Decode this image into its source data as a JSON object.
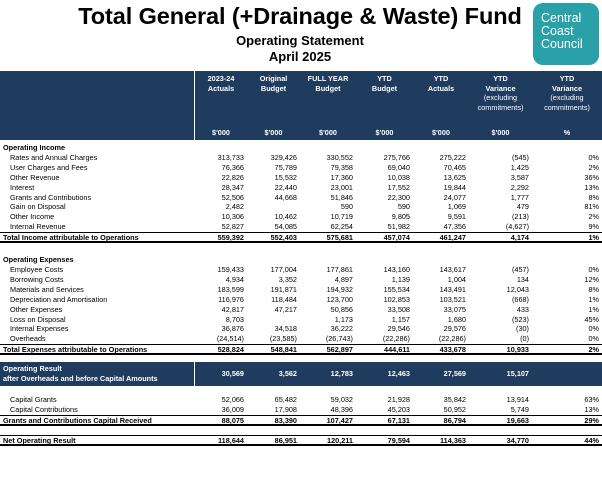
{
  "header": {
    "title": "Total General (+Drainage & Waste) Fund",
    "subtitle": "Operating Statement",
    "period": "April 2025",
    "logo_lines": [
      "Central",
      "Coast",
      "Council"
    ]
  },
  "columns": [
    {
      "lines": [
        "2023-24",
        "Actuals"
      ],
      "sub": [],
      "unit": "$'000"
    },
    {
      "lines": [
        "Original",
        "Budget"
      ],
      "sub": [],
      "unit": "$'000"
    },
    {
      "lines": [
        "FULL YEAR",
        "Budget"
      ],
      "sub": [],
      "unit": "$'000"
    },
    {
      "lines": [
        "YTD",
        "Budget"
      ],
      "sub": [],
      "unit": "$'000"
    },
    {
      "lines": [
        "YTD",
        "Actuals"
      ],
      "sub": [],
      "unit": "$'000"
    },
    {
      "lines": [
        "YTD",
        "Variance"
      ],
      "sub": [
        "(excluding",
        "commitments)"
      ],
      "unit": "$'000"
    },
    {
      "lines": [
        "YTD",
        "Variance"
      ],
      "sub": [
        "(excluding",
        "commitments)"
      ],
      "unit": "%"
    }
  ],
  "sections": {
    "income": {
      "title": "Operating Income",
      "rows": [
        {
          "label": "Rates and Annual Charges",
          "bold": false,
          "values": [
            "313,733",
            "329,426",
            "330,552",
            "275,766",
            "275,222",
            "(545)",
            "0%"
          ]
        },
        {
          "label": "User Charges and Fees",
          "bold": false,
          "values": [
            "76,366",
            "75,789",
            "79,358",
            "69,040",
            "70,465",
            "1,425",
            "2%"
          ]
        },
        {
          "label": "Other Revenue",
          "bold": false,
          "values": [
            "22,826",
            "15,532",
            "17,360",
            "10,038",
            "13,625",
            "3,587",
            "36%"
          ]
        },
        {
          "label": "Interest",
          "bold": false,
          "values": [
            "28,347",
            "22,440",
            "23,001",
            "17,552",
            "19,844",
            "2,292",
            "13%"
          ]
        },
        {
          "label": "Grants and Contributions",
          "bold": false,
          "values": [
            "52,506",
            "44,668",
            "51,846",
            "22,300",
            "24,077",
            "1,777",
            "8%"
          ]
        },
        {
          "label": "Gain on Disposal",
          "bold": false,
          "values": [
            "2,482",
            "",
            "590",
            "590",
            "1,069",
            "479",
            "81%"
          ]
        },
        {
          "label": "Other Income",
          "bold": false,
          "values": [
            "10,306",
            "10,462",
            "10,719",
            "9,805",
            "9,591",
            "(213)",
            "2%"
          ]
        },
        {
          "label": "Internal Revenue",
          "bold": false,
          "values": [
            "52,827",
            "54,085",
            "62,254",
            "51,982",
            "47,356",
            "(4,627)",
            "9%"
          ]
        }
      ],
      "total": {
        "label": "Total Income attributable to Operations",
        "values": [
          "559,392",
          "552,403",
          "575,681",
          "457,074",
          "461,247",
          "4,174",
          "1%"
        ]
      }
    },
    "expenses": {
      "title": "Operating Expenses",
      "rows": [
        {
          "label": "Employee Costs",
          "bold": false,
          "values": [
            "159,433",
            "177,004",
            "177,861",
            "143,160",
            "143,617",
            "(457)",
            "0%"
          ]
        },
        {
          "label": "Borrowing Costs",
          "bold": false,
          "values": [
            "4,934",
            "3,352",
            "4,897",
            "1,139",
            "1,004",
            "134",
            "12%"
          ]
        },
        {
          "label": "Materials and Services",
          "bold": false,
          "values": [
            "183,599",
            "191,871",
            "194,932",
            "155,534",
            "143,491",
            "12,043",
            "8%"
          ]
        },
        {
          "label": "Depreciation and Amortisation",
          "bold": false,
          "values": [
            "116,976",
            "118,484",
            "123,700",
            "102,853",
            "103,521",
            "(668)",
            "1%"
          ]
        },
        {
          "label": "Other Expenses",
          "bold": false,
          "values": [
            "42,817",
            "47,217",
            "50,856",
            "33,508",
            "33,075",
            "433",
            "1%"
          ]
        },
        {
          "label": "Loss on Disposal",
          "bold": false,
          "values": [
            "8,703",
            "",
            "1,173",
            "1,157",
            "1,680",
            "(523)",
            "45%"
          ]
        },
        {
          "label": "Internal Expenses",
          "bold": false,
          "values": [
            "36,876",
            "34,518",
            "36,222",
            "29,546",
            "29,576",
            "(30)",
            "0%"
          ]
        },
        {
          "label": "Overheads",
          "bold": false,
          "values": [
            "(24,514)",
            "(23,585)",
            "(26,743)",
            "(22,286)",
            "(22,286)",
            "(0)",
            "0%"
          ]
        }
      ],
      "total": {
        "label": "Total Expenses attributable to Operations",
        "values": [
          "528,824",
          "548,841",
          "562,897",
          "444,611",
          "433,678",
          "10,933",
          "2%"
        ]
      }
    },
    "result": {
      "lines": [
        "Operating Result",
        "after Overheads and before Capital Amounts"
      ],
      "values": [
        "30,569",
        "3,562",
        "12,783",
        "12,463",
        "27,569",
        "15,107",
        ""
      ]
    },
    "capital": {
      "rows": [
        {
          "label": "Capital Grants",
          "bold": false,
          "values": [
            "52,066",
            "65,482",
            "59,032",
            "21,928",
            "35,842",
            "13,914",
            "63%"
          ]
        },
        {
          "label": "Capital Contributions",
          "bold": false,
          "values": [
            "36,009",
            "17,908",
            "48,396",
            "45,203",
            "50,952",
            "5,749",
            "13%"
          ]
        }
      ],
      "total": {
        "label": "Grants and Contributions Capital Received",
        "values": [
          "88,075",
          "83,390",
          "107,427",
          "67,131",
          "86,794",
          "19,663",
          "29%"
        ]
      }
    },
    "net": {
      "label": "Net Operating Result",
      "values": [
        "118,644",
        "86,951",
        "120,211",
        "79,594",
        "114,363",
        "34,770",
        "44%"
      ]
    }
  },
  "colors": {
    "header_bg": "#1f3b5e",
    "logo_bg": "#2aa1a8"
  }
}
